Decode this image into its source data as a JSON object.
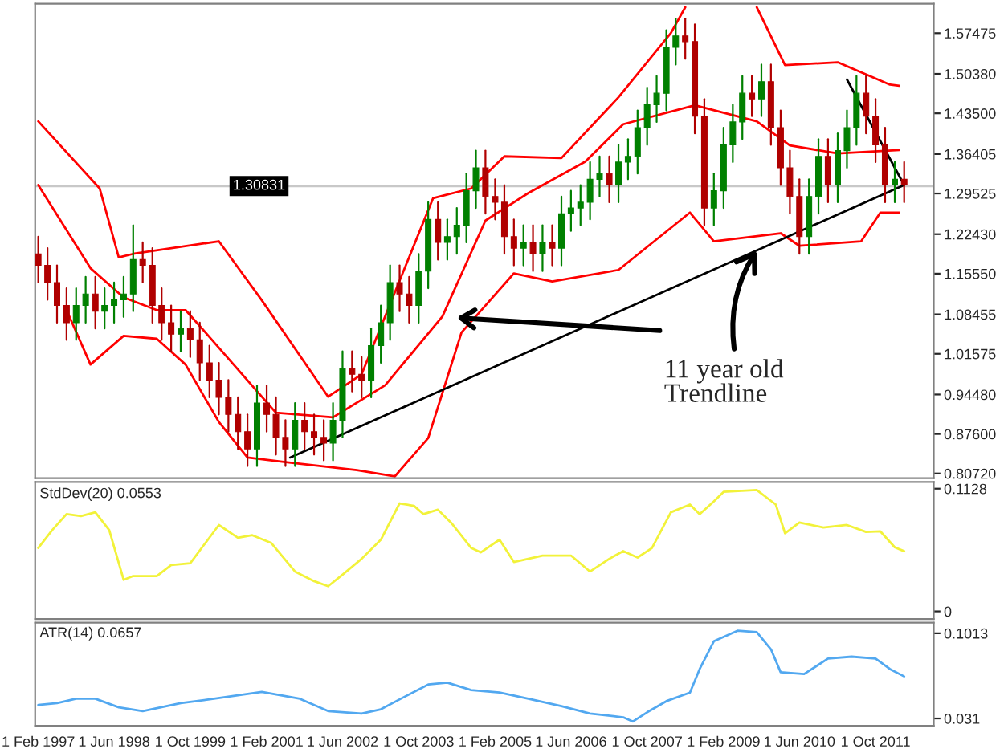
{
  "chart_data": [
    {
      "type": "candlestick",
      "x": [
        "1997-02",
        "1997-04",
        "1997-06",
        "1997-08",
        "1997-10",
        "1997-12",
        "1998-02",
        "1998-04",
        "1998-06",
        "1998-08",
        "1998-10",
        "1998-12",
        "1999-02",
        "1999-04",
        "1999-06",
        "1999-08",
        "1999-10",
        "1999-12",
        "2000-02",
        "2000-04",
        "2000-06",
        "2000-08",
        "2000-10",
        "2000-12",
        "2001-02",
        "2001-04",
        "2001-06",
        "2001-08",
        "2001-10",
        "2001-12",
        "2002-02",
        "2002-04",
        "2002-06",
        "2002-08",
        "2002-10",
        "2002-12",
        "2003-02",
        "2003-04",
        "2003-06",
        "2003-08",
        "2003-10",
        "2003-12",
        "2004-02",
        "2004-04",
        "2004-06",
        "2004-08",
        "2004-10",
        "2004-12",
        "2005-02",
        "2005-04",
        "2005-06",
        "2005-08",
        "2005-10",
        "2005-12",
        "2006-02",
        "2006-04",
        "2006-06",
        "2006-08",
        "2006-10",
        "2006-12",
        "2007-02",
        "2007-04",
        "2007-06",
        "2007-08",
        "2007-10",
        "2007-12",
        "2008-02",
        "2008-04",
        "2008-06",
        "2008-08",
        "2008-10",
        "2008-12",
        "2009-02",
        "2009-04",
        "2009-06",
        "2009-08",
        "2009-10",
        "2009-12",
        "2010-02",
        "2010-04",
        "2010-06",
        "2010-08",
        "2010-10",
        "2010-12",
        "2011-02",
        "2011-04",
        "2011-06",
        "2011-08",
        "2011-10",
        "2011-12",
        "2012-02",
        "2012-04"
      ],
      "ohlc": [
        [
          1.19,
          1.22,
          1.14,
          1.17
        ],
        [
          1.17,
          1.2,
          1.11,
          1.14
        ],
        [
          1.14,
          1.17,
          1.07,
          1.1
        ],
        [
          1.1,
          1.13,
          1.04,
          1.07
        ],
        [
          1.07,
          1.13,
          1.04,
          1.1
        ],
        [
          1.1,
          1.15,
          1.07,
          1.12
        ],
        [
          1.12,
          1.15,
          1.06,
          1.09
        ],
        [
          1.09,
          1.13,
          1.06,
          1.1
        ],
        [
          1.1,
          1.14,
          1.07,
          1.11
        ],
        [
          1.11,
          1.15,
          1.08,
          1.12
        ],
        [
          1.12,
          1.24,
          1.09,
          1.18
        ],
        [
          1.18,
          1.21,
          1.14,
          1.17
        ],
        [
          1.17,
          1.2,
          1.07,
          1.1
        ],
        [
          1.1,
          1.13,
          1.04,
          1.07
        ],
        [
          1.07,
          1.1,
          1.02,
          1.05
        ],
        [
          1.05,
          1.09,
          1.02,
          1.06
        ],
        [
          1.06,
          1.09,
          1.01,
          1.04
        ],
        [
          1.04,
          1.07,
          0.97,
          1.0
        ],
        [
          1.0,
          1.03,
          0.94,
          0.97
        ],
        [
          0.97,
          1.0,
          0.91,
          0.94
        ],
        [
          0.94,
          0.97,
          0.88,
          0.91
        ],
        [
          0.91,
          0.94,
          0.85,
          0.88
        ],
        [
          0.88,
          0.91,
          0.82,
          0.85
        ],
        [
          0.85,
          0.96,
          0.82,
          0.93
        ],
        [
          0.93,
          0.96,
          0.88,
          0.91
        ],
        [
          0.91,
          0.94,
          0.84,
          0.87
        ],
        [
          0.87,
          0.9,
          0.82,
          0.85
        ],
        [
          0.85,
          0.93,
          0.82,
          0.9
        ],
        [
          0.9,
          0.93,
          0.85,
          0.88
        ],
        [
          0.88,
          0.91,
          0.84,
          0.87
        ],
        [
          0.87,
          0.9,
          0.83,
          0.86
        ],
        [
          0.86,
          0.93,
          0.83,
          0.9
        ],
        [
          0.9,
          1.02,
          0.87,
          0.99
        ],
        [
          0.99,
          1.02,
          0.95,
          0.98
        ],
        [
          0.98,
          1.01,
          0.94,
          0.97
        ],
        [
          0.97,
          1.06,
          0.94,
          1.03
        ],
        [
          1.03,
          1.1,
          1.0,
          1.07
        ],
        [
          1.07,
          1.17,
          1.04,
          1.14
        ],
        [
          1.14,
          1.17,
          1.09,
          1.12
        ],
        [
          1.12,
          1.15,
          1.07,
          1.1
        ],
        [
          1.1,
          1.19,
          1.07,
          1.16
        ],
        [
          1.16,
          1.28,
          1.13,
          1.25
        ],
        [
          1.25,
          1.28,
          1.18,
          1.21
        ],
        [
          1.21,
          1.25,
          1.18,
          1.22
        ],
        [
          1.22,
          1.27,
          1.19,
          1.24
        ],
        [
          1.24,
          1.33,
          1.21,
          1.3
        ],
        [
          1.3,
          1.37,
          1.27,
          1.34
        ],
        [
          1.34,
          1.37,
          1.26,
          1.29
        ],
        [
          1.29,
          1.32,
          1.25,
          1.28
        ],
        [
          1.28,
          1.31,
          1.19,
          1.22
        ],
        [
          1.22,
          1.25,
          1.17,
          1.2
        ],
        [
          1.2,
          1.24,
          1.17,
          1.21
        ],
        [
          1.21,
          1.24,
          1.16,
          1.19
        ],
        [
          1.19,
          1.24,
          1.16,
          1.21
        ],
        [
          1.21,
          1.24,
          1.17,
          1.2
        ],
        [
          1.2,
          1.29,
          1.17,
          1.26
        ],
        [
          1.26,
          1.3,
          1.23,
          1.27
        ],
        [
          1.27,
          1.31,
          1.24,
          1.28
        ],
        [
          1.28,
          1.35,
          1.25,
          1.32
        ],
        [
          1.32,
          1.36,
          1.29,
          1.33
        ],
        [
          1.33,
          1.36,
          1.28,
          1.31
        ],
        [
          1.31,
          1.38,
          1.28,
          1.35
        ],
        [
          1.35,
          1.39,
          1.32,
          1.36
        ],
        [
          1.36,
          1.44,
          1.33,
          1.41
        ],
        [
          1.41,
          1.48,
          1.38,
          1.45
        ],
        [
          1.45,
          1.5,
          1.42,
          1.47
        ],
        [
          1.47,
          1.58,
          1.44,
          1.55
        ],
        [
          1.55,
          1.6,
          1.52,
          1.57
        ],
        [
          1.57,
          1.6,
          1.53,
          1.56
        ],
        [
          1.56,
          1.59,
          1.4,
          1.43
        ],
        [
          1.43,
          1.46,
          1.24,
          1.27
        ],
        [
          1.27,
          1.33,
          1.24,
          1.3
        ],
        [
          1.3,
          1.41,
          1.27,
          1.38
        ],
        [
          1.38,
          1.45,
          1.35,
          1.42
        ],
        [
          1.42,
          1.5,
          1.39,
          1.47
        ],
        [
          1.47,
          1.5,
          1.43,
          1.46
        ],
        [
          1.46,
          1.52,
          1.43,
          1.49
        ],
        [
          1.49,
          1.52,
          1.38,
          1.41
        ],
        [
          1.41,
          1.44,
          1.31,
          1.34
        ],
        [
          1.34,
          1.37,
          1.26,
          1.29
        ],
        [
          1.29,
          1.32,
          1.19,
          1.22
        ],
        [
          1.22,
          1.32,
          1.19,
          1.29
        ],
        [
          1.29,
          1.39,
          1.26,
          1.36
        ],
        [
          1.36,
          1.39,
          1.28,
          1.31
        ],
        [
          1.31,
          1.4,
          1.28,
          1.37
        ],
        [
          1.37,
          1.44,
          1.34,
          1.41
        ],
        [
          1.41,
          1.5,
          1.38,
          1.47
        ],
        [
          1.47,
          1.5,
          1.4,
          1.43
        ],
        [
          1.43,
          1.46,
          1.35,
          1.38
        ],
        [
          1.38,
          1.41,
          1.28,
          1.31
        ],
        [
          1.31,
          1.35,
          1.28,
          1.32
        ],
        [
          1.32,
          1.35,
          1.28,
          1.31
        ]
      ],
      "colors": [
        "#b00000",
        "#b00000",
        "#b00000",
        "#b00000",
        "#008000",
        "#008000",
        "#b00000",
        "#008000",
        "#008000",
        "#008000",
        "#008000",
        "#b00000",
        "#b00000",
        "#b00000",
        "#b00000",
        "#008000",
        "#b00000",
        "#b00000",
        "#b00000",
        "#b00000",
        "#b00000",
        "#b00000",
        "#b00000",
        "#008000",
        "#b00000",
        "#b00000",
        "#b00000",
        "#008000",
        "#b00000",
        "#b00000",
        "#b00000",
        "#008000",
        "#008000",
        "#b00000",
        "#b00000",
        "#008000",
        "#008000",
        "#008000",
        "#b00000",
        "#b00000",
        "#008000",
        "#008000",
        "#b00000",
        "#008000",
        "#008000",
        "#008000",
        "#008000",
        "#b00000",
        "#b00000",
        "#b00000",
        "#b00000",
        "#008000",
        "#b00000",
        "#008000",
        "#b00000",
        "#008000",
        "#008000",
        "#008000",
        "#008000",
        "#008000",
        "#b00000",
        "#008000",
        "#008000",
        "#008000",
        "#008000",
        "#008000",
        "#008000",
        "#008000",
        "#b00000",
        "#b00000",
        "#b00000",
        "#008000",
        "#008000",
        "#008000",
        "#008000",
        "#b00000",
        "#008000",
        "#b00000",
        "#b00000",
        "#b00000",
        "#b00000",
        "#008000",
        "#008000",
        "#b00000",
        "#008000",
        "#008000",
        "#008000",
        "#b00000",
        "#b00000",
        "#b00000",
        "#008000",
        "#b00000"
      ],
      "series": [
        {
          "type": "line",
          "color": "#ff0000",
          "x": [
            "1997-02",
            "1998-03",
            "1998-07",
            "1998-10",
            "2000-04",
            "2001-01",
            "2002-03",
            "2002-10",
            "2004-01",
            "2004-09",
            "2005-04",
            "2006-04",
            "2007-04",
            "2008-03",
            "2008-06",
            "2008-09",
            "2009-09",
            "2010-03",
            "2011-02",
            "2012-01",
            "2012-03"
          ],
          "values": [
            1.421,
            1.304,
            1.184,
            1.19,
            1.212,
            1.109,
            0.941,
            0.98,
            1.287,
            1.304,
            1.36,
            1.357,
            1.463,
            1.575,
            1.62,
            null,
            1.62,
            1.519,
            1.524,
            1.485,
            1.483
          ]
        },
        {
          "type": "line",
          "color": "#ff0000",
          "x": [
            "1997-02",
            "1998-01",
            "1998-08",
            "1999-03",
            "1999-09",
            "2000-02",
            "2001-04",
            "2002-04",
            "2003-03",
            "2004-03",
            "2004-12",
            "2005-09",
            "2006-09",
            "2007-05",
            "2008-08",
            "2009-09",
            "2010-04",
            "2011-02",
            "2012-03"
          ],
          "values": [
            1.31,
            1.165,
            1.114,
            1.092,
            1.092,
            1.045,
            0.913,
            0.905,
            0.961,
            1.081,
            1.248,
            1.296,
            1.351,
            1.416,
            1.449,
            1.421,
            1.379,
            1.365,
            1.371
          ]
        },
        {
          "type": "line",
          "color": "#ff0000",
          "x": [
            "1997-08",
            "1998-01",
            "1998-08",
            "1999-03",
            "1999-09",
            "2000-04",
            "2000-10",
            "2001-06",
            "2002-09",
            "2003-05",
            "2003-12",
            "2004-07",
            "2004-12",
            "2005-06",
            "2006-02",
            "2007-04",
            "2008-07",
            "2008-12",
            "2010-02",
            "2010-06",
            "2011-07",
            "2011-11",
            "2012-03"
          ],
          "values": [
            1.092,
            0.997,
            1.047,
            1.042,
            0.997,
            0.897,
            0.835,
            0.827,
            0.813,
            0.802,
            0.869,
            1.053,
            1.1,
            1.156,
            1.142,
            1.162,
            1.262,
            1.212,
            1.226,
            1.204,
            1.212,
            1.262,
            1.262
          ]
        },
        {
          "type": "line",
          "color": "#000000",
          "x": [
            "2001-07",
            "2012-04"
          ],
          "values": [
            0.835,
            1.31
          ]
        },
        {
          "type": "line",
          "color": "#000000",
          "x": [
            "2011-04",
            "2012-04"
          ],
          "values": [
            1.494,
            1.31
          ]
        }
      ],
      "xlim": [
        "1997-01-12",
        "2012-10-07"
      ],
      "ylim": [
        0.799,
        1.626
      ],
      "yticks": [
        {
          "value": 0.8072,
          "label": "0.80720"
        },
        {
          "value": 0.876,
          "label": "0.87600"
        },
        {
          "value": 0.9448,
          "label": "0.94480"
        },
        1.01575,
        1.08455,
        {
          "value": 1.1555,
          "label": "1.15550"
        },
        {
          "value": 1.2243,
          "label": "1.22430"
        },
        1.29525,
        1.36405,
        {
          "value": 1.435,
          "label": "1.43500"
        },
        {
          "value": 1.5038,
          "label": "1.50380"
        },
        1.57475
      ],
      "ref_lines": [
        {
          "axis": "y",
          "value": 1.30831,
          "label": "1.30831",
          "color": "#c8c8c8"
        }
      ],
      "annotations": [
        {
          "text": "11 year old\nTrendline",
          "x": "2009-09",
          "y": 1.196
        }
      ],
      "tick_labels": "y"
    },
    {
      "type": "line",
      "title": "StdDev(20) 0.0553",
      "color": "#f2f23a",
      "x": [
        "1997-02",
        "1997-05",
        "1997-08",
        "1997-11",
        "1998-02",
        "1998-05",
        "1998-08",
        "1998-10",
        "1999-03",
        "1999-06",
        "1999-10",
        "2000-04",
        "2000-08",
        "2000-11",
        "2001-03",
        "2001-08",
        "2001-12",
        "2002-03",
        "2002-06",
        "2002-10",
        "2003-02",
        "2003-06",
        "2003-09",
        "2003-11",
        "2004-02",
        "2004-05",
        "2004-09",
        "2004-11",
        "2005-03",
        "2005-06",
        "2005-12",
        "2006-06",
        "2006-10",
        "2007-02",
        "2007-05",
        "2007-08",
        "2007-11",
        "2008-03",
        "2008-07",
        "2008-09",
        "2008-12",
        "2009-02",
        "2009-09",
        "2010-01",
        "2010-03",
        "2010-06",
        "2010-11",
        "2011-04",
        "2011-08",
        "2011-11",
        "2012-02",
        "2012-04"
      ],
      "values": [
        0.0583,
        0.0747,
        0.0894,
        0.0876,
        0.0911,
        0.0747,
        0.029,
        0.0325,
        0.0325,
        0.0425,
        0.0442,
        0.0794,
        0.0677,
        0.07,
        0.063,
        0.0366,
        0.0278,
        0.0231,
        0.0337,
        0.0483,
        0.0659,
        0.0993,
        0.097,
        0.0894,
        0.0935,
        0.0806,
        0.0583,
        0.0542,
        0.0659,
        0.0454,
        0.0513,
        0.0513,
        0.0366,
        0.0483,
        0.0554,
        0.0495,
        0.0583,
        0.0911,
        0.0982,
        0.0894,
        0.1011,
        0.1099,
        0.1116,
        0.0982,
        0.0718,
        0.0817,
        0.0771,
        0.0794,
        0.073,
        0.0735,
        0.0589,
        0.0553
      ],
      "xlim": [
        "1997-01-12",
        "2012-10-07"
      ],
      "ylim": [
        -0.007,
        0.119
      ],
      "yticks": [
        0,
        0.1128
      ],
      "tick_labels": "y"
    },
    {
      "type": "line",
      "title": "ATR(14) 0.0657",
      "color": "#52a8f0",
      "x": [
        "1997-02",
        "1997-06",
        "1997-10",
        "1998-02",
        "1998-07",
        "1998-12",
        "1999-08",
        "2000-03",
        "2001-01",
        "2001-09",
        "2002-03",
        "2002-10",
        "2003-02",
        "2003-07",
        "2003-12",
        "2004-04",
        "2004-09",
        "2005-03",
        "2005-09",
        "2006-04",
        "2006-10",
        "2007-05",
        "2007-07",
        "2007-10",
        "2008-02",
        "2008-07",
        "2008-09",
        "2008-12",
        "2009-05",
        "2009-09",
        "2009-12",
        "2010-02",
        "2010-07",
        "2010-12",
        "2011-05",
        "2011-10",
        "2012-01",
        "2012-04"
      ],
      "values": [
        0.0422,
        0.0437,
        0.0473,
        0.0473,
        0.0402,
        0.0371,
        0.0437,
        0.0473,
        0.0529,
        0.0473,
        0.0371,
        0.0351,
        0.0386,
        0.0488,
        0.059,
        0.0606,
        0.0544,
        0.0524,
        0.0473,
        0.0412,
        0.0351,
        0.032,
        0.0285,
        0.0361,
        0.0453,
        0.0524,
        0.0718,
        0.0947,
        0.1034,
        0.1023,
        0.0881,
        0.0692,
        0.0677,
        0.0804,
        0.082,
        0.0804,
        0.0718,
        0.0657
      ],
      "xlim": [
        "1997-01-12",
        "2012-10-07"
      ],
      "ylim": [
        0.0249,
        0.11
      ],
      "yticks": [
        0.031,
        0.1013
      ],
      "xticks": [
        {
          "value": "1997-02-01",
          "label": "1 Feb 1997"
        },
        {
          "value": "1998-06-01",
          "label": "1 Jun 1998"
        },
        {
          "value": "1999-10-01",
          "label": "1 Oct 1999"
        },
        {
          "value": "2001-02-01",
          "label": "1 Feb 2001"
        },
        {
          "value": "2002-06-01",
          "label": "1 Jun 2002"
        },
        {
          "value": "2003-10-01",
          "label": "1 Oct 2003"
        },
        {
          "value": "2005-02-01",
          "label": "1 Feb 2005"
        },
        {
          "value": "2006-06-01",
          "label": "1 Jun 2006"
        },
        {
          "value": "2007-10-01",
          "label": "1 Oct 2007"
        },
        {
          "value": "2009-02-01",
          "label": "1 Feb 2009"
        },
        {
          "value": "2010-06-01",
          "label": "1 Jun 2010"
        },
        {
          "value": "2011-10-01",
          "label": "1 Oct 2011"
        }
      ]
    }
  ]
}
